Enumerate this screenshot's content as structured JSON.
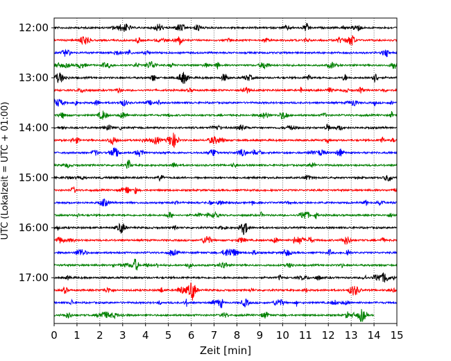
{
  "chart_data": {
    "type": "line",
    "title": "",
    "xlabel": "Zeit  [min]",
    "ylabel": "UTC (Lokalzeit = UTC + 01:00)",
    "xlim": [
      0,
      15
    ],
    "x_ticks": [
      "0",
      "1",
      "2",
      "3",
      "4",
      "5",
      "6",
      "7",
      "8",
      "9",
      "10",
      "11",
      "12",
      "13",
      "14",
      "15"
    ],
    "y_ticks": [
      "12:00",
      "13:00",
      "14:00",
      "15:00",
      "16:00",
      "17:00"
    ],
    "grid": "vertical dotted",
    "trace_interval_min": 15,
    "traces": [
      {
        "start": "12:00",
        "color": "#000000",
        "end_min": 15
      },
      {
        "start": "12:15",
        "color": "#ff0000",
        "end_min": 15
      },
      {
        "start": "12:30",
        "color": "#0000ff",
        "end_min": 15
      },
      {
        "start": "12:45",
        "color": "#008000",
        "end_min": 15
      },
      {
        "start": "13:00",
        "color": "#000000",
        "end_min": 15
      },
      {
        "start": "13:15",
        "color": "#ff0000",
        "end_min": 15
      },
      {
        "start": "13:30",
        "color": "#0000ff",
        "end_min": 15
      },
      {
        "start": "13:45",
        "color": "#008000",
        "end_min": 15
      },
      {
        "start": "14:00",
        "color": "#000000",
        "end_min": 15
      },
      {
        "start": "14:15",
        "color": "#ff0000",
        "end_min": 15
      },
      {
        "start": "14:30",
        "color": "#0000ff",
        "end_min": 15
      },
      {
        "start": "14:45",
        "color": "#008000",
        "end_min": 15
      },
      {
        "start": "15:00",
        "color": "#000000",
        "end_min": 15
      },
      {
        "start": "15:15",
        "color": "#ff0000",
        "end_min": 15
      },
      {
        "start": "15:30",
        "color": "#0000ff",
        "end_min": 15
      },
      {
        "start": "15:45",
        "color": "#008000",
        "end_min": 15
      },
      {
        "start": "16:00",
        "color": "#000000",
        "end_min": 15
      },
      {
        "start": "16:15",
        "color": "#ff0000",
        "end_min": 15
      },
      {
        "start": "16:30",
        "color": "#0000ff",
        "end_min": 15
      },
      {
        "start": "16:45",
        "color": "#008000",
        "end_min": 15
      },
      {
        "start": "17:00",
        "color": "#000000",
        "end_min": 15
      },
      {
        "start": "17:15",
        "color": "#ff0000",
        "end_min": 15
      },
      {
        "start": "17:30",
        "color": "#0000ff",
        "end_min": 15
      },
      {
        "start": "17:45",
        "color": "#008000",
        "end_min": 14
      }
    ]
  }
}
